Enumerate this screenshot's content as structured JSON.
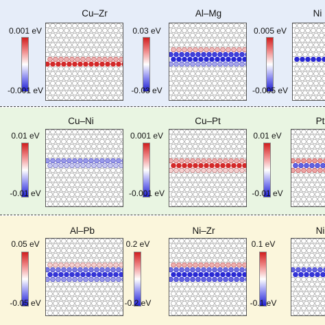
{
  "colors": {
    "positive": "#d11e1e",
    "negative": "#1e1ed1",
    "neutral": "#ffffff",
    "atom_outline": "#9a9a9a"
  },
  "rows": [
    {
      "background": "#e6edf9",
      "panels": [
        {
          "title": "Cu–Zr",
          "scale_max": "0.001 eV",
          "scale_min": "-0.001 eV",
          "layers": [
            {
              "row": 7,
              "sign": "positive",
              "intensity": 0.35
            },
            {
              "row": 8,
              "sign": "positive",
              "intensity": 0.95
            }
          ]
        },
        {
          "title": "Al–Mg",
          "scale_max": "0.03 eV",
          "scale_min": "-0.03 eV",
          "layers": [
            {
              "row": 5,
              "sign": "positive",
              "intensity": 0.3
            },
            {
              "row": 6,
              "sign": "negative",
              "intensity": 0.85
            },
            {
              "row": 7,
              "sign": "negative",
              "intensity": 0.95
            },
            {
              "row": 8,
              "sign": "negative",
              "intensity": 0.4
            }
          ]
        },
        {
          "title": "Ni",
          "scale_max": "0.005 eV",
          "scale_min": "-0.005 eV",
          "layers": [
            {
              "row": 7,
              "sign": "negative",
              "intensity": 0.95
            }
          ]
        }
      ]
    },
    {
      "background": "#e9f5e2",
      "panels": [
        {
          "title": "Cu–Ni",
          "scale_max": "0.01 eV",
          "scale_min": "-0.01 eV",
          "layers": [
            {
              "row": 6,
              "sign": "negative",
              "intensity": 0.45
            },
            {
              "row": 7,
              "sign": "negative",
              "intensity": 0.25
            }
          ]
        },
        {
          "title": "Cu–Pt",
          "scale_max": "0.001 eV",
          "scale_min": "-0.001 eV",
          "layers": [
            {
              "row": 6,
              "sign": "positive",
              "intensity": 0.35
            },
            {
              "row": 7,
              "sign": "positive",
              "intensity": 0.95
            },
            {
              "row": 8,
              "sign": "positive",
              "intensity": 0.2
            }
          ]
        },
        {
          "title": "Pt",
          "scale_max": "0.01 eV",
          "scale_min": "-0.01 eV",
          "layers": [
            {
              "row": 6,
              "sign": "positive",
              "intensity": 0.45
            },
            {
              "row": 7,
              "sign": "negative",
              "intensity": 0.7
            },
            {
              "row": 8,
              "sign": "positive",
              "intensity": 0.4
            }
          ]
        }
      ]
    },
    {
      "background": "#fbf6dc",
      "panels": [
        {
          "title": "Al–Pb",
          "scale_max": "0.05 eV",
          "scale_min": "-0.05 eV",
          "layers": [
            {
              "row": 5,
              "sign": "positive",
              "intensity": 0.2
            },
            {
              "row": 6,
              "sign": "negative",
              "intensity": 0.6
            },
            {
              "row": 7,
              "sign": "negative",
              "intensity": 0.9
            },
            {
              "row": 8,
              "sign": "negative",
              "intensity": 0.45
            }
          ]
        },
        {
          "title": "Ni–Zr",
          "scale_max": "0.2 eV",
          "scale_min": "-0.2 eV",
          "layers": [
            {
              "row": 5,
              "sign": "positive",
              "intensity": 0.35
            },
            {
              "row": 6,
              "sign": "negative",
              "intensity": 0.65
            },
            {
              "row": 7,
              "sign": "negative",
              "intensity": 0.95
            },
            {
              "row": 8,
              "sign": "negative",
              "intensity": 0.7
            }
          ]
        },
        {
          "title": "Ni",
          "scale_max": "0.1 eV",
          "scale_min": "-0.1 eV",
          "layers": [
            {
              "row": 6,
              "sign": "negative",
              "intensity": 0.7
            },
            {
              "row": 7,
              "sign": "negative",
              "intensity": 0.9
            }
          ]
        }
      ]
    }
  ]
}
